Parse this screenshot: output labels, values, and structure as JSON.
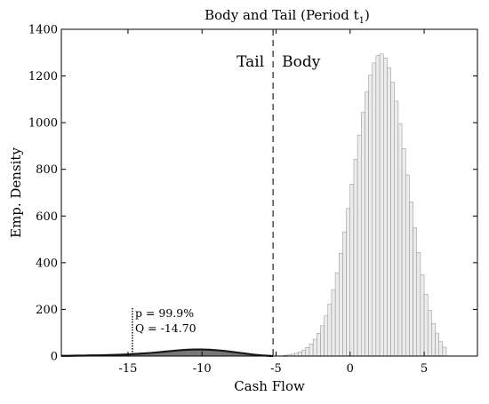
{
  "chart_data": {
    "type": "bar",
    "title": "Body and Tail (Period t",
    "title_subscript": "1",
    "title_suffix": ")",
    "xlabel": "Cash Flow",
    "ylabel": "Emp. Density",
    "xlim": [
      -19.5,
      8.6
    ],
    "ylim": [
      0,
      1400
    ],
    "xticks": [
      -15,
      -10,
      -5,
      0,
      5
    ],
    "xtick_labels": [
      "-15",
      "-10",
      "-5",
      "0",
      "5"
    ],
    "yticks": [
      0,
      200,
      400,
      600,
      800,
      1000,
      1200,
      1400
    ],
    "ytick_labels": [
      "0",
      "200",
      "400",
      "600",
      "800",
      "1000",
      "1200",
      "1400"
    ],
    "grid": false,
    "region_labels": {
      "tail": "Tail",
      "body": "Body"
    },
    "threshold_x": -5.2,
    "quantile_x": -14.7,
    "annotation": {
      "line1": "p = 99.9%",
      "line2": "Q = -14.70"
    },
    "colors": {
      "body_fill": "#ececec",
      "body_edge": "#8c8c8c",
      "tail_fill": "#777777",
      "tail_edge": "#1a1a1a",
      "axis": "#000000"
    },
    "body_histogram": {
      "bin_width": 0.25,
      "x": [
        -4.375,
        -4.125,
        -3.875,
        -3.625,
        -3.375,
        -3.125,
        -2.875,
        -2.625,
        -2.375,
        -2.125,
        -1.875,
        -1.625,
        -1.375,
        -1.125,
        -0.875,
        -0.625,
        -0.375,
        -0.125,
        0.125,
        0.375,
        0.625,
        0.875,
        1.125,
        1.375,
        1.625,
        1.875,
        2.125,
        2.375,
        2.625,
        2.875,
        3.125,
        3.375,
        3.625,
        3.875,
        4.125,
        4.375,
        4.625,
        4.875,
        5.125,
        5.375,
        5.625,
        5.875,
        6.125,
        6.375
      ],
      "values": [
        3,
        5,
        8,
        12,
        18,
        26,
        37,
        52,
        72,
        98,
        130,
        172,
        223,
        285,
        357,
        440,
        532,
        632,
        737,
        843,
        947,
        1044,
        1131,
        1203,
        1256,
        1287,
        1294,
        1277,
        1236,
        1173,
        1092,
        996,
        889,
        776,
        661,
        549,
        444,
        348,
        265,
        196,
        140,
        96,
        62,
        38
      ]
    },
    "tail_density": {
      "x": [
        -19.5,
        -19,
        -18.5,
        -18,
        -17.5,
        -17,
        -16.5,
        -16,
        -15.5,
        -15,
        -14.5,
        -14,
        -13.5,
        -13,
        -12.5,
        -12,
        -11.5,
        -11,
        -10.5,
        -10,
        -9.5,
        -9,
        -8.5,
        -8,
        -7.5,
        -7,
        -6.5,
        -6,
        -5.5,
        -5.2
      ],
      "values": [
        1,
        1,
        2,
        2,
        3,
        3,
        4,
        5,
        6,
        7,
        9,
        11,
        13,
        16,
        19,
        22,
        25,
        27,
        28,
        28,
        27,
        25,
        22,
        18,
        14,
        10,
        6,
        3,
        1,
        0
      ]
    }
  }
}
